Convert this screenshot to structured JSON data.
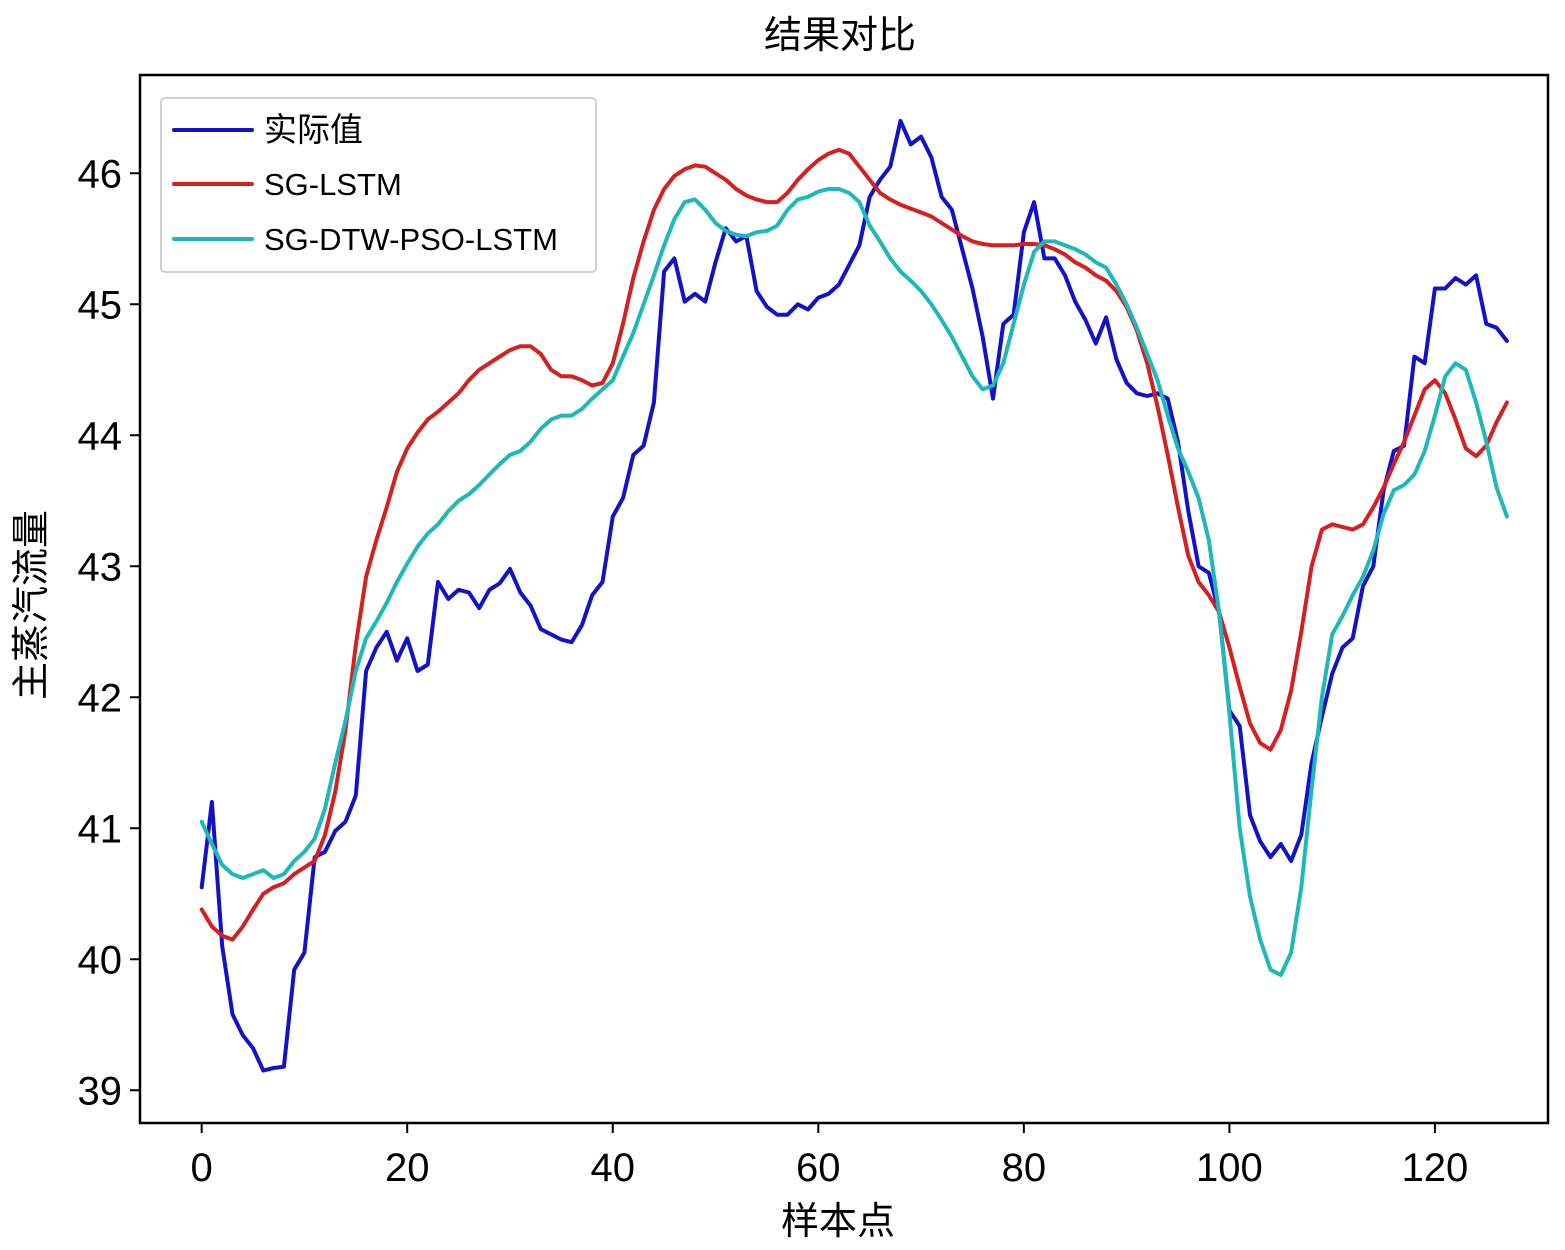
{
  "chart_data": {
    "type": "line",
    "title": "结果对比",
    "xlabel": "样本点",
    "ylabel": "主蒸汽流量",
    "xlim": [
      -6,
      131
    ],
    "ylim": [
      38.75,
      46.75
    ],
    "xticks": [
      0,
      20,
      40,
      60,
      80,
      100,
      120
    ],
    "yticks": [
      39,
      40,
      41,
      42,
      43,
      44,
      45,
      46
    ],
    "grid": false,
    "legend_position": "top-left",
    "x": [
      0,
      1,
      2,
      3,
      4,
      5,
      6,
      7,
      8,
      9,
      10,
      11,
      12,
      13,
      14,
      15,
      16,
      17,
      18,
      19,
      20,
      21,
      22,
      23,
      24,
      25,
      26,
      27,
      28,
      29,
      30,
      31,
      32,
      33,
      34,
      35,
      36,
      37,
      38,
      39,
      40,
      41,
      42,
      43,
      44,
      45,
      46,
      47,
      48,
      49,
      50,
      51,
      52,
      53,
      54,
      55,
      56,
      57,
      58,
      59,
      60,
      61,
      62,
      63,
      64,
      65,
      66,
      67,
      68,
      69,
      70,
      71,
      72,
      73,
      74,
      75,
      76,
      77,
      78,
      79,
      80,
      81,
      82,
      83,
      84,
      85,
      86,
      87,
      88,
      89,
      90,
      91,
      92,
      93,
      94,
      95,
      96,
      97,
      98,
      99,
      100,
      101,
      102,
      103,
      104,
      105,
      106,
      107,
      108,
      109,
      110,
      111,
      112,
      113,
      114,
      115,
      116,
      117,
      118,
      119,
      120,
      121,
      122,
      123,
      124,
      125,
      126,
      127
    ],
    "series": [
      {
        "name": "实际值",
        "color": "#1212c8",
        "values": [
          40.55,
          41.2,
          40.1,
          39.58,
          39.42,
          39.32,
          39.15,
          39.17,
          39.18,
          39.92,
          40.05,
          40.78,
          40.82,
          40.98,
          41.05,
          41.25,
          42.2,
          42.38,
          42.5,
          42.28,
          42.45,
          42.2,
          42.25,
          42.88,
          42.75,
          42.82,
          42.8,
          42.68,
          42.82,
          42.87,
          42.98,
          42.8,
          42.7,
          42.52,
          42.48,
          42.44,
          42.42,
          42.55,
          42.78,
          42.88,
          43.38,
          43.52,
          43.85,
          43.92,
          44.25,
          45.25,
          45.35,
          45.02,
          45.08,
          45.02,
          45.32,
          45.58,
          45.48,
          45.52,
          45.1,
          44.98,
          44.92,
          44.92,
          45.0,
          44.96,
          45.05,
          45.08,
          45.15,
          45.3,
          45.45,
          45.82,
          45.95,
          46.05,
          46.4,
          46.22,
          46.28,
          46.12,
          45.82,
          45.72,
          45.42,
          45.12,
          44.75,
          44.28,
          44.85,
          44.92,
          45.55,
          45.78,
          45.35,
          45.35,
          45.22,
          45.02,
          44.88,
          44.7,
          44.9,
          44.58,
          44.4,
          44.32,
          44.3,
          44.32,
          44.28,
          43.95,
          43.42,
          43.0,
          42.95,
          42.65,
          41.9,
          41.78,
          41.1,
          40.9,
          40.78,
          40.88,
          40.75,
          40.95,
          41.5,
          41.85,
          42.18,
          42.38,
          42.45,
          42.85,
          43.0,
          43.58,
          43.88,
          43.92,
          44.6,
          44.55,
          45.12,
          45.12,
          45.2,
          45.15,
          45.22,
          44.85,
          44.82,
          44.72
        ]
      },
      {
        "name": "SG-LSTM",
        "color": "#d42020",
        "values": [
          40.38,
          40.25,
          40.18,
          40.15,
          40.25,
          40.38,
          40.5,
          40.55,
          40.58,
          40.65,
          40.7,
          40.75,
          40.95,
          41.28,
          41.75,
          42.4,
          42.92,
          43.2,
          43.45,
          43.72,
          43.9,
          44.02,
          44.12,
          44.18,
          44.25,
          44.32,
          44.42,
          44.5,
          44.55,
          44.6,
          44.65,
          44.68,
          44.68,
          44.62,
          44.5,
          44.45,
          44.45,
          44.42,
          44.38,
          44.4,
          44.55,
          44.85,
          45.2,
          45.48,
          45.72,
          45.88,
          45.98,
          46.03,
          46.06,
          46.05,
          46.0,
          45.95,
          45.88,
          45.83,
          45.8,
          45.78,
          45.78,
          45.85,
          45.95,
          46.03,
          46.1,
          46.15,
          46.18,
          46.15,
          46.05,
          45.95,
          45.85,
          45.8,
          45.76,
          45.73,
          45.7,
          45.67,
          45.62,
          45.57,
          45.52,
          45.48,
          45.46,
          45.45,
          45.45,
          45.45,
          45.46,
          45.46,
          45.45,
          45.42,
          45.38,
          45.32,
          45.28,
          45.22,
          45.18,
          45.1,
          44.98,
          44.8,
          44.55,
          44.22,
          43.85,
          43.45,
          43.08,
          42.88,
          42.78,
          42.65,
          42.38,
          42.08,
          41.8,
          41.65,
          41.6,
          41.75,
          42.05,
          42.5,
          43.0,
          43.28,
          43.32,
          43.3,
          43.28,
          43.32,
          43.45,
          43.6,
          43.78,
          43.95,
          44.15,
          44.35,
          44.42,
          44.32,
          44.12,
          43.9,
          43.84,
          43.92,
          44.1,
          44.25
        ]
      },
      {
        "name": "SG-DTW-PSO-LSTM",
        "color": "#1fb8b8",
        "values": [
          41.05,
          40.88,
          40.72,
          40.65,
          40.62,
          40.65,
          40.68,
          40.62,
          40.65,
          40.75,
          40.82,
          40.92,
          41.15,
          41.5,
          41.82,
          42.2,
          42.45,
          42.58,
          42.72,
          42.88,
          43.02,
          43.15,
          43.25,
          43.32,
          43.42,
          43.5,
          43.55,
          43.62,
          43.7,
          43.78,
          43.85,
          43.88,
          43.95,
          44.05,
          44.12,
          44.15,
          44.15,
          44.2,
          44.28,
          44.35,
          44.42,
          44.6,
          44.78,
          45.0,
          45.22,
          45.45,
          45.65,
          45.78,
          45.8,
          45.72,
          45.62,
          45.56,
          45.53,
          45.52,
          45.55,
          45.56,
          45.6,
          45.72,
          45.8,
          45.82,
          45.86,
          45.88,
          45.88,
          45.85,
          45.78,
          45.6,
          45.48,
          45.35,
          45.25,
          45.18,
          45.1,
          45.0,
          44.88,
          44.75,
          44.6,
          44.45,
          44.35,
          44.38,
          44.55,
          44.85,
          45.15,
          45.4,
          45.48,
          45.48,
          45.45,
          45.42,
          45.38,
          45.32,
          45.28,
          45.15,
          45.0,
          44.82,
          44.62,
          44.42,
          44.15,
          43.9,
          43.72,
          43.52,
          43.2,
          42.65,
          41.88,
          41.0,
          40.48,
          40.15,
          39.92,
          39.88,
          40.05,
          40.55,
          41.3,
          42.0,
          42.48,
          42.62,
          42.78,
          42.92,
          43.12,
          43.4,
          43.58,
          43.62,
          43.7,
          43.88,
          44.15,
          44.45,
          44.55,
          44.5,
          44.25,
          43.95,
          43.6,
          43.38
        ]
      }
    ]
  }
}
